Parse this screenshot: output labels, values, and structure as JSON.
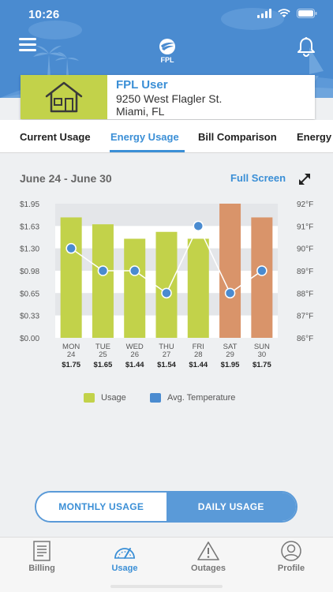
{
  "status_bar": {
    "time": "10:26"
  },
  "header": {
    "logo_text": "FPL"
  },
  "account": {
    "name": "FPL User",
    "address_line1": "9250 West Flagler St.",
    "address_line2": "Miami, FL"
  },
  "tabs": [
    {
      "label": "Current Usage",
      "active": false
    },
    {
      "label": "Energy Usage",
      "active": true
    },
    {
      "label": "Bill Comparison",
      "active": false
    },
    {
      "label": "Energy",
      "active": false
    }
  ],
  "chart_header": {
    "date_range": "June 24 - June 30",
    "full_screen": "Full Screen"
  },
  "chart_data": {
    "type": "bar",
    "categories": [
      {
        "day": "MON",
        "date": "24"
      },
      {
        "day": "TUE",
        "date": "25"
      },
      {
        "day": "WED",
        "date": "26"
      },
      {
        "day": "THU",
        "date": "27"
      },
      {
        "day": "FRI",
        "date": "28"
      },
      {
        "day": "SAT",
        "date": "29"
      },
      {
        "day": "SUN",
        "date": "30"
      }
    ],
    "series": [
      {
        "name": "Usage",
        "values": [
          1.75,
          1.65,
          1.44,
          1.54,
          1.44,
          1.95,
          1.75
        ],
        "value_labels": [
          "$1.75",
          "$1.65",
          "$1.44",
          "$1.54",
          "$1.44",
          "$1.95",
          "$1.75"
        ],
        "colors": [
          "#c2d24a",
          "#c2d24a",
          "#c2d24a",
          "#c2d24a",
          "#c2d24a",
          "#d9946a",
          "#d9946a"
        ]
      },
      {
        "name": "Avg. Temperature",
        "type": "line",
        "values": [
          90,
          89,
          89,
          88,
          91,
          88,
          89
        ],
        "color": "#4a8bd0"
      }
    ],
    "y_left": {
      "ticks": [
        "$0.00",
        "$0.33",
        "$0.65",
        "$0.98",
        "$1.30",
        "$1.63",
        "$1.95"
      ],
      "range": [
        0,
        1.95
      ]
    },
    "y_right": {
      "ticks": [
        "86°F",
        "87°F",
        "88°F",
        "89°F",
        "90°F",
        "91°F",
        "92°F"
      ],
      "range": [
        86,
        92
      ]
    }
  },
  "legend": [
    {
      "label": "Usage",
      "color": "#c2d24a"
    },
    {
      "label": "Avg. Temperature",
      "color": "#4a8bd0"
    }
  ],
  "toggle": {
    "monthly": "MONTHLY USAGE",
    "daily": "DAILY USAGE",
    "selected": "daily"
  },
  "bottom_nav": [
    {
      "label": "Billing",
      "icon": "billing-icon",
      "active": false
    },
    {
      "label": "Usage",
      "icon": "gauge-icon",
      "active": true
    },
    {
      "label": "Outages",
      "icon": "warning-icon",
      "active": false
    },
    {
      "label": "Profile",
      "icon": "profile-icon",
      "active": false
    }
  ]
}
